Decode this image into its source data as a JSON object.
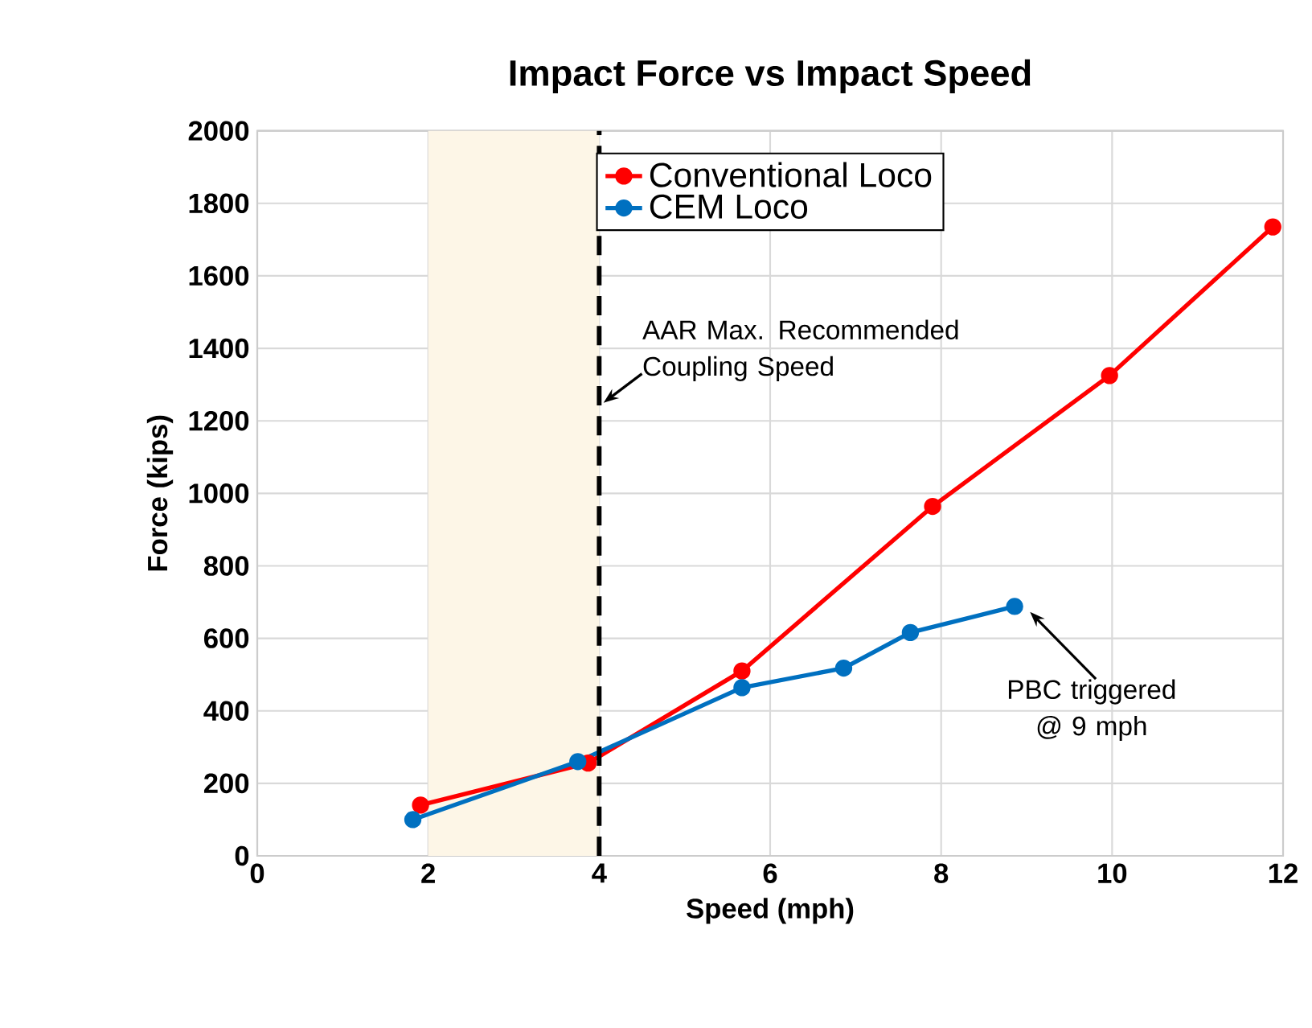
{
  "chart_data": {
    "type": "line",
    "title": "Impact Force vs Impact Speed",
    "xlabel": "Speed (mph)",
    "ylabel": "Force (kips)",
    "xlim": [
      0,
      12
    ],
    "xticks": [
      0,
      2,
      4,
      6,
      8,
      10,
      12
    ],
    "ylim": [
      0,
      2000
    ],
    "yticks": [
      0,
      200,
      400,
      600,
      800,
      1000,
      1200,
      1400,
      1600,
      1800,
      2000
    ],
    "grid": true,
    "legend": "top",
    "marker": "circle",
    "line_style": "solid",
    "series": [
      {
        "name": "Conventional Loco",
        "color": "#ff0000",
        "x": [
          1.91,
          3.87,
          5.67,
          7.9,
          9.97,
          11.88
        ],
        "values": [
          140,
          256,
          510,
          964,
          1325,
          1735
        ]
      },
      {
        "name": "CEM Loco",
        "color": "#0070c0",
        "x": [
          1.82,
          3.75,
          5.67,
          6.86,
          7.64,
          8.86
        ],
        "values": [
          100,
          260,
          464,
          518,
          616,
          688
        ]
      }
    ],
    "bands": [
      {
        "axis": "x",
        "from": 2,
        "to": 4,
        "color": "#fdf6e7"
      }
    ],
    "ref_lines": [
      {
        "axis": "x",
        "value": 4,
        "color": "#000000",
        "line_style": "dashed"
      }
    ],
    "annotations": [
      {
        "text": "AAR Max. Recommended Coupling Speed",
        "x": 4,
        "y": 1250
      },
      {
        "text": "PBC triggered @ 9 mph",
        "x": 8.86,
        "y": 688
      }
    ]
  }
}
